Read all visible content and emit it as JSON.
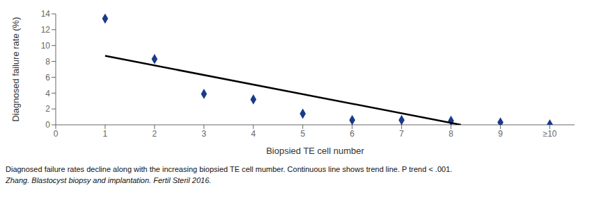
{
  "chart_data": {
    "type": "scatter",
    "xlabel": "Biopsied TE cell number",
    "ylabel": "Diagnosed failure rate (%)",
    "series": [
      {
        "type": "scatter",
        "color": "#1a3a8a",
        "marker": "diamond",
        "x": [
          1,
          2,
          3,
          4,
          5,
          6,
          7,
          8,
          9,
          10
        ],
        "values": [
          13.4,
          8.3,
          3.9,
          3.2,
          1.4,
          0.6,
          0.6,
          0.5,
          0.3,
          0.05
        ]
      },
      {
        "type": "line",
        "color": "#000000",
        "line_style": "solid",
        "x": [
          1,
          8.2
        ],
        "values": [
          8.7,
          0.0
        ]
      }
    ],
    "xlim": [
      0,
      10.5
    ],
    "ylim": [
      0,
      14
    ],
    "xticks": [
      0,
      1,
      2,
      3,
      4,
      5,
      6,
      7,
      8,
      9,
      {
        "value": 10,
        "label": "≥10"
      }
    ],
    "yticks": [
      0,
      2,
      4,
      6,
      8,
      10,
      12,
      14
    ],
    "grid": false,
    "annotations": [
      "Diagnosed failure rates decline along with the increasing biopsied TE cell mumber. Continuous line shows trend line. P trend < .001.",
      "Zhang. Blastocyst biopsy and implantation. Fertil Steril 2016."
    ]
  }
}
